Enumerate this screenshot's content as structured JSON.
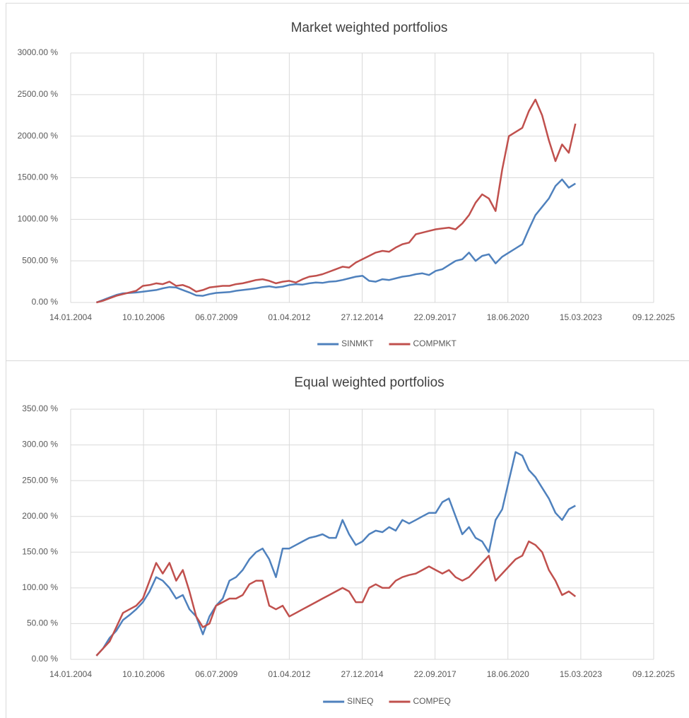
{
  "chart_data": [
    {
      "type": "line",
      "title": "Market weighted portfolios",
      "x": [
        "2005-01-01",
        "2005-04-01",
        "2005-07-01",
        "2005-10-01",
        "2006-01-01",
        "2006-04-01",
        "2006-07-01",
        "2006-10-01",
        "2007-01-01",
        "2007-04-01",
        "2007-07-01",
        "2007-10-01",
        "2008-01-01",
        "2008-04-01",
        "2008-07-01",
        "2008-10-01",
        "2009-01-01",
        "2009-04-01",
        "2009-07-01",
        "2009-10-01",
        "2010-01-01",
        "2010-04-01",
        "2010-07-01",
        "2010-10-01",
        "2011-01-01",
        "2011-04-01",
        "2011-07-01",
        "2011-10-01",
        "2012-01-01",
        "2012-04-01",
        "2012-07-01",
        "2012-10-01",
        "2013-01-01",
        "2013-04-01",
        "2013-07-01",
        "2013-10-01",
        "2014-01-01",
        "2014-04-01",
        "2014-07-01",
        "2014-10-01",
        "2015-01-01",
        "2015-04-01",
        "2015-07-01",
        "2015-10-01",
        "2016-01-01",
        "2016-04-01",
        "2016-07-01",
        "2016-10-01",
        "2017-01-01",
        "2017-04-01",
        "2017-07-01",
        "2017-10-01",
        "2018-01-01",
        "2018-04-01",
        "2018-07-01",
        "2018-10-01",
        "2019-01-01",
        "2019-04-01",
        "2019-07-01",
        "2019-10-01",
        "2020-01-01",
        "2020-04-01",
        "2020-07-01",
        "2020-10-01",
        "2021-01-01",
        "2021-04-01",
        "2021-07-01",
        "2021-10-01",
        "2022-01-01",
        "2022-04-01",
        "2022-07-01",
        "2022-10-01",
        "2023-01-01"
      ],
      "series": [
        {
          "name": "SINMKT",
          "color": "#4f81bd",
          "values": [
            0,
            30,
            60,
            90,
            110,
            115,
            120,
            130,
            140,
            150,
            170,
            185,
            180,
            150,
            120,
            85,
            80,
            100,
            115,
            120,
            125,
            140,
            150,
            160,
            170,
            185,
            195,
            180,
            190,
            210,
            220,
            215,
            230,
            240,
            235,
            250,
            255,
            270,
            290,
            310,
            320,
            260,
            250,
            280,
            270,
            290,
            310,
            320,
            340,
            350,
            330,
            380,
            400,
            450,
            500,
            520,
            600,
            500,
            560,
            580,
            470,
            550,
            600,
            650,
            700,
            880,
            1050,
            1150,
            1250,
            1400,
            1480,
            1380,
            1430
          ]
        },
        {
          "name": "COMPMKT",
          "color": "#c0504d",
          "values": [
            0,
            20,
            50,
            80,
            100,
            120,
            140,
            200,
            210,
            230,
            220,
            250,
            200,
            210,
            180,
            130,
            150,
            180,
            190,
            200,
            200,
            220,
            230,
            250,
            270,
            280,
            260,
            230,
            250,
            260,
            240,
            280,
            310,
            320,
            340,
            370,
            400,
            430,
            420,
            480,
            520,
            560,
            600,
            620,
            610,
            660,
            700,
            720,
            820,
            840,
            860,
            880,
            890,
            900,
            880,
            950,
            1050,
            1200,
            1300,
            1250,
            1100,
            1600,
            2000,
            2050,
            2100,
            2300,
            2440,
            2250,
            1950,
            1700,
            1900,
            1800,
            2150
          ]
        }
      ],
      "xlim": [
        "2004-01-14",
        "2025-12-09"
      ],
      "xticks": [
        {
          "value": "2004-01-14",
          "label": "14.01.2004"
        },
        {
          "value": "2006-10-10",
          "label": "10.10.2006"
        },
        {
          "value": "2009-07-06",
          "label": "06.07.2009"
        },
        {
          "value": "2012-04-01",
          "label": "01.04.2012"
        },
        {
          "value": "2014-12-27",
          "label": "27.12.2014"
        },
        {
          "value": "2017-09-22",
          "label": "22.09.2017"
        },
        {
          "value": "2020-06-18",
          "label": "18.06.2020"
        },
        {
          "value": "2023-03-15",
          "label": "15.03.2023"
        },
        {
          "value": "2025-12-09",
          "label": "09.12.2025"
        }
      ],
      "ylim": [
        0,
        3000
      ],
      "yticks": [
        {
          "value": 0,
          "label": "0.00 %"
        },
        {
          "value": 500,
          "label": "500.00 %"
        },
        {
          "value": 1000,
          "label": "1000.00 %"
        },
        {
          "value": 1500,
          "label": "1500.00 %"
        },
        {
          "value": 2000,
          "label": "2000.00 %"
        },
        {
          "value": 2500,
          "label": "2500.00 %"
        },
        {
          "value": 3000,
          "label": "3000.00 %"
        }
      ],
      "grid": true,
      "legend": "bottom"
    },
    {
      "type": "line",
      "title": "Equal weighted portfolios",
      "x": [
        "2005-01-01",
        "2005-04-01",
        "2005-07-01",
        "2005-10-01",
        "2006-01-01",
        "2006-04-01",
        "2006-07-01",
        "2006-10-01",
        "2007-01-01",
        "2007-04-01",
        "2007-07-01",
        "2007-10-01",
        "2008-01-01",
        "2008-04-01",
        "2008-07-01",
        "2008-10-01",
        "2009-01-01",
        "2009-04-01",
        "2009-07-01",
        "2009-10-01",
        "2010-01-01",
        "2010-04-01",
        "2010-07-01",
        "2010-10-01",
        "2011-01-01",
        "2011-04-01",
        "2011-07-01",
        "2011-10-01",
        "2012-01-01",
        "2012-04-01",
        "2012-07-01",
        "2012-10-01",
        "2013-01-01",
        "2013-04-01",
        "2013-07-01",
        "2013-10-01",
        "2014-01-01",
        "2014-04-01",
        "2014-07-01",
        "2014-10-01",
        "2015-01-01",
        "2015-04-01",
        "2015-07-01",
        "2015-10-01",
        "2016-01-01",
        "2016-04-01",
        "2016-07-01",
        "2016-10-01",
        "2017-01-01",
        "2017-04-01",
        "2017-07-01",
        "2017-10-01",
        "2018-01-01",
        "2018-04-01",
        "2018-07-01",
        "2018-10-01",
        "2019-01-01",
        "2019-04-01",
        "2019-07-01",
        "2019-10-01",
        "2020-01-01",
        "2020-04-01",
        "2020-07-01",
        "2020-10-01",
        "2021-01-01",
        "2021-04-01",
        "2021-07-01",
        "2021-10-01",
        "2022-01-01",
        "2022-04-01",
        "2022-07-01",
        "2022-10-01",
        "2023-01-01"
      ],
      "series": [
        {
          "name": "SINEQ",
          "color": "#4f81bd",
          "values": [
            5,
            15,
            30,
            40,
            55,
            62,
            70,
            80,
            95,
            115,
            110,
            100,
            85,
            90,
            70,
            60,
            35,
            60,
            75,
            85,
            110,
            115,
            125,
            140,
            150,
            155,
            140,
            115,
            155,
            155,
            160,
            165,
            170,
            172,
            175,
            170,
            170,
            195,
            175,
            160,
            165,
            175,
            180,
            178,
            185,
            180,
            195,
            190,
            195,
            200,
            205,
            205,
            220,
            225,
            200,
            175,
            185,
            170,
            165,
            150,
            195,
            210,
            250,
            290,
            285,
            265,
            255,
            240,
            225,
            205,
            195,
            210,
            215
          ]
        },
        {
          "name": "COMPEQ",
          "color": "#c0504d",
          "values": [
            5,
            15,
            25,
            45,
            65,
            70,
            75,
            85,
            110,
            135,
            120,
            135,
            110,
            125,
            95,
            60,
            45,
            50,
            75,
            80,
            85,
            85,
            90,
            105,
            110,
            110,
            75,
            70,
            75,
            60,
            65,
            70,
            75,
            80,
            85,
            90,
            95,
            100,
            95,
            80,
            80,
            100,
            105,
            100,
            100,
            110,
            115,
            118,
            120,
            125,
            130,
            125,
            120,
            125,
            115,
            110,
            115,
            125,
            135,
            145,
            110,
            120,
            130,
            140,
            145,
            165,
            160,
            150,
            125,
            110,
            90,
            95,
            88
          ]
        }
      ],
      "xlim": [
        "2004-01-14",
        "2025-12-09"
      ],
      "xticks": [
        {
          "value": "2004-01-14",
          "label": "14.01.2004"
        },
        {
          "value": "2006-10-10",
          "label": "10.10.2006"
        },
        {
          "value": "2009-07-06",
          "label": "06.07.2009"
        },
        {
          "value": "2012-04-01",
          "label": "01.04.2012"
        },
        {
          "value": "2014-12-27",
          "label": "27.12.2014"
        },
        {
          "value": "2017-09-22",
          "label": "22.09.2017"
        },
        {
          "value": "2020-06-18",
          "label": "18.06.2020"
        },
        {
          "value": "2023-03-15",
          "label": "15.03.2023"
        },
        {
          "value": "2025-12-09",
          "label": "09.12.2025"
        }
      ],
      "ylim": [
        0,
        350
      ],
      "yticks": [
        {
          "value": 0,
          "label": "0.00 %"
        },
        {
          "value": 50,
          "label": "50.00 %"
        },
        {
          "value": 100,
          "label": "100.00 %"
        },
        {
          "value": 150,
          "label": "150.00 %"
        },
        {
          "value": 200,
          "label": "200.00 %"
        },
        {
          "value": 250,
          "label": "250.00 %"
        },
        {
          "value": 300,
          "label": "300.00 %"
        },
        {
          "value": 350,
          "label": "350.00 %"
        }
      ],
      "grid": true,
      "legend": "bottom"
    }
  ]
}
